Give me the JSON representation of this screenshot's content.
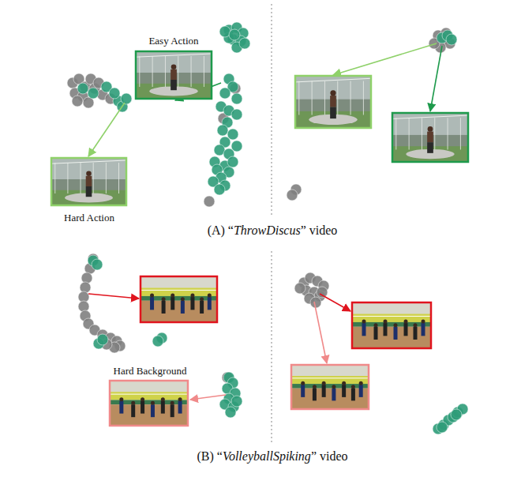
{
  "chart_data": [
    {
      "type": "scatter",
      "xlim": [
        0,
        280
      ],
      "ylim": [
        0,
        270
      ],
      "tick_labels": false,
      "marker": "circle",
      "series": [
        {
          "color": "#7f7f7f",
          "x": [
            32,
            40,
            48,
            55,
            35,
            45,
            60,
            70,
            80,
            52,
            38,
            65,
            238,
            205,
            223
          ],
          "values": [
            165,
            170,
            160,
            170,
            152,
            148,
            158,
            150,
            145,
            140,
            142,
            165,
            158,
            15,
            120
          ]
        },
        {
          "color": "#2f9c79",
          "x": [
            230,
            240,
            248,
            235,
            245,
            230,
            240,
            250,
            225,
            237,
            58,
            75,
            90,
            95,
            100,
            45,
            85,
            230,
            235,
            225,
            240,
            220,
            230,
            240,
            228,
            222,
            235,
            225,
            218,
            230,
            212,
            225,
            215,
            230,
            220,
            210,
            225,
            218,
            235,
            240
          ],
          "values": [
            232,
            235,
            228,
            220,
            218,
            222,
            210,
            215,
            230,
            226,
            152,
            160,
            142,
            135,
            145,
            158,
            152,
            170,
            160,
            152,
            145,
            135,
            130,
            125,
            115,
            105,
            100,
            90,
            80,
            75,
            65,
            60,
            55,
            52,
            45,
            40,
            35,
            30,
            65,
            85
          ]
        }
      ],
      "annotations": [
        {
          "text": "Easy Action"
        },
        {
          "text": "Hard Action"
        }
      ]
    },
    {
      "type": "scatter",
      "xlim": [
        0,
        280
      ],
      "ylim": [
        0,
        270
      ],
      "tick_labels": false,
      "marker": "circle",
      "series": [
        {
          "color": "#7f7f7f",
          "x": [
            205,
            212,
            220,
            208,
            215,
            200,
            25,
            20
          ],
          "values": [
            225,
            220,
            215,
            210,
            228,
            215,
            30,
            23
          ]
        },
        {
          "color": "#2f9c79",
          "x": [
            210,
            217,
            222
          ],
          "values": [
            222,
            225,
            220
          ]
        }
      ]
    },
    {
      "type": "scatter",
      "xlim": [
        0,
        280
      ],
      "ylim": [
        0,
        250
      ],
      "tick_labels": false,
      "marker": "circle",
      "series": [
        {
          "color": "#7f7f7f",
          "x": [
            58,
            54,
            50,
            48,
            46,
            46,
            48,
            52,
            60,
            70,
            80,
            88,
            92,
            85,
            75,
            228
          ],
          "values": [
            237,
            225,
            213,
            201,
            189,
            177,
            165,
            155,
            147,
            141,
            137,
            133,
            127,
            125,
            129,
            87
          ]
        },
        {
          "color": "#2f9c79",
          "x": [
            58,
            63,
            65,
            70,
            145,
            140,
            230,
            235,
            228,
            238,
            230,
            225,
            236,
            232,
            240
          ],
          "values": [
            235,
            230,
            130,
            135,
            137,
            133,
            87,
            80,
            73,
            67,
            60,
            53,
            50,
            43,
            57
          ]
        }
      ],
      "annotations": [
        {
          "text": "Hard Background"
        }
      ]
    },
    {
      "type": "scatter",
      "xlim": [
        0,
        280
      ],
      "ylim": [
        0,
        250
      ],
      "tick_labels": false,
      "marker": "circle",
      "series": [
        {
          "color": "#7f7f7f",
          "x": [
            35,
            43,
            52,
            60,
            38,
            48,
            55,
            42,
            30,
            50,
            58
          ],
          "values": [
            207,
            213,
            209,
            203,
            197,
            195,
            190,
            187,
            200,
            182,
            195
          ]
        },
        {
          "color": "#2f9c79",
          "x": [
            205,
            212,
            218,
            224,
            230,
            236,
            210,
            228
          ],
          "values": [
            22,
            27,
            33,
            37,
            43,
            47,
            24,
            40
          ]
        }
      ]
    }
  ],
  "captions": [
    {
      "prefix": "(A) “",
      "name": "ThrowDiscus",
      "suffix": "” video"
    },
    {
      "prefix": "(B) “",
      "name": "VolleyballSpiking",
      "suffix": "” video"
    }
  ]
}
